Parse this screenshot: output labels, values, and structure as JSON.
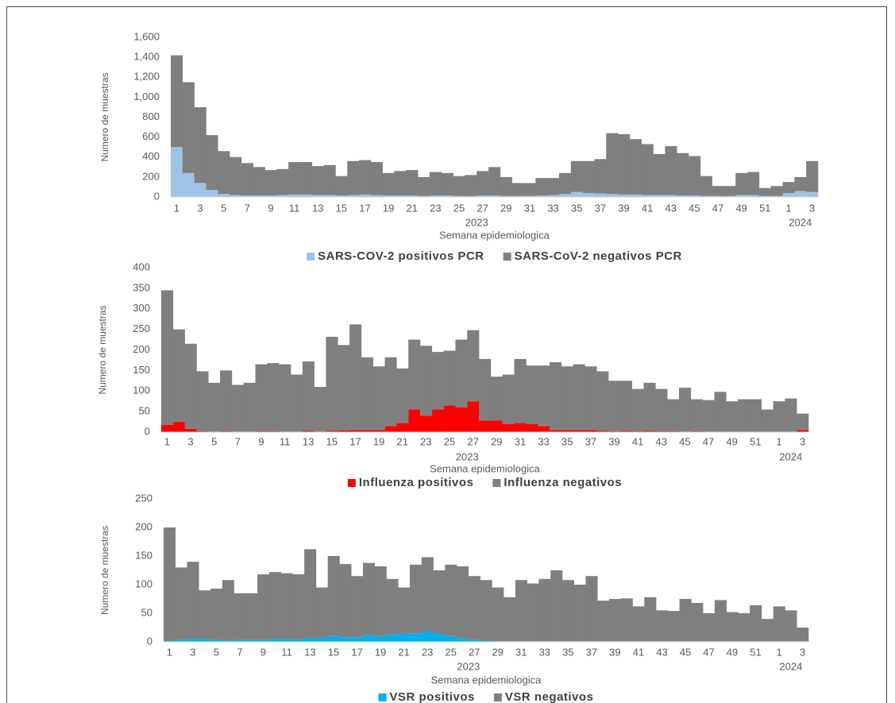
{
  "chart_data": [
    {
      "type": "bar",
      "stacked": true,
      "y_label": "Numero de muestras",
      "x_label": "Semana epidemiologica",
      "x_groups": [
        "2023",
        "2024"
      ],
      "categories": [
        "1",
        null,
        "3",
        null,
        "5",
        null,
        "7",
        null,
        "9",
        null,
        "11",
        null,
        "13",
        null,
        "15",
        null,
        "17",
        null,
        "19",
        null,
        "21",
        null,
        "23",
        null,
        "25",
        null,
        "27",
        null,
        "29",
        null,
        "31",
        null,
        "33",
        null,
        "35",
        null,
        "37",
        null,
        "39",
        null,
        "41",
        null,
        "43",
        null,
        "45",
        null,
        "47",
        null,
        "49",
        null,
        "51",
        null,
        "1",
        null,
        "3"
      ],
      "ylim": [
        0,
        1600
      ],
      "yticks": [
        0,
        200,
        400,
        600,
        800,
        {
          "value": 1000,
          "label": "1,000"
        },
        {
          "value": 1200,
          "label": "1,200"
        },
        {
          "value": 1400,
          "label": "1,400"
        },
        {
          "value": 1600,
          "label": "1,600"
        }
      ],
      "series": [
        {
          "name": "SARS-COV-2 positivos PCR",
          "color": "#9dc3e6",
          "values": [
            500,
            240,
            140,
            70,
            30,
            20,
            15,
            15,
            15,
            20,
            25,
            25,
            20,
            20,
            15,
            20,
            25,
            20,
            15,
            15,
            15,
            10,
            15,
            15,
            10,
            10,
            15,
            15,
            10,
            10,
            10,
            15,
            20,
            30,
            50,
            40,
            35,
            30,
            25,
            25,
            20,
            20,
            20,
            15,
            15,
            10,
            10,
            10,
            20,
            20,
            10,
            10,
            40,
            60,
            50
          ]
        },
        {
          "name": "SARS-CoV-2 negativos PCR",
          "color": "#7f7f7f",
          "values": [
            920,
            910,
            760,
            550,
            430,
            380,
            325,
            285,
            255,
            260,
            325,
            325,
            290,
            300,
            195,
            340,
            345,
            330,
            225,
            245,
            255,
            190,
            235,
            225,
            200,
            210,
            245,
            285,
            190,
            130,
            130,
            175,
            170,
            210,
            310,
            320,
            345,
            610,
            605,
            555,
            510,
            410,
            490,
            425,
            395,
            200,
            100,
            100,
            220,
            230,
            80,
            100,
            110,
            140,
            310
          ]
        }
      ]
    },
    {
      "type": "bar",
      "stacked": true,
      "y_label": "Numero de muestras",
      "x_label": "Semana epidemiologica",
      "x_groups": [
        "2023",
        "2024"
      ],
      "categories": [
        "1",
        null,
        "3",
        null,
        "5",
        null,
        "7",
        null,
        "9",
        null,
        "11",
        null,
        "13",
        null,
        "15",
        null,
        "17",
        null,
        "19",
        null,
        "21",
        null,
        "23",
        null,
        "25",
        null,
        "27",
        null,
        "29",
        null,
        "31",
        null,
        "33",
        null,
        "35",
        null,
        "37",
        null,
        "39",
        null,
        "41",
        null,
        "43",
        null,
        "45",
        null,
        "47",
        null,
        "49",
        null,
        "51",
        null,
        "1",
        null,
        "3"
      ],
      "ylim": [
        0,
        400
      ],
      "yticks": [
        0,
        50,
        100,
        150,
        200,
        250,
        300,
        350,
        400
      ],
      "series": [
        {
          "name": "Influenza positivos",
          "color": "#ff0000",
          "values": [
            18,
            25,
            8,
            2,
            1,
            2,
            1,
            1,
            2,
            2,
            1,
            1,
            3,
            1,
            3,
            4,
            5,
            5,
            5,
            15,
            22,
            55,
            40,
            55,
            65,
            60,
            75,
            28,
            28,
            20,
            22,
            20,
            15,
            5,
            5,
            5,
            5,
            3,
            2,
            3,
            2,
            3,
            2,
            2,
            1,
            2,
            1,
            1,
            1,
            1,
            1,
            1,
            1,
            1,
            5
          ]
        },
        {
          "name": "Influenza negativos",
          "color": "#7f7f7f",
          "values": [
            327,
            225,
            207,
            146,
            119,
            148,
            114,
            119,
            163,
            166,
            164,
            139,
            169,
            109,
            229,
            208,
            257,
            177,
            155,
            167,
            133,
            170,
            170,
            140,
            133,
            165,
            173,
            150,
            107,
            120,
            156,
            142,
            147,
            165,
            155,
            160,
            155,
            145,
            123,
            122,
            103,
            117,
            103,
            78,
            107,
            78,
            77,
            97,
            74,
            79,
            79,
            54,
            74,
            81,
            40
          ]
        }
      ]
    },
    {
      "type": "bar",
      "stacked": true,
      "y_label": "Numero de muestras",
      "x_label": "Semana epidemiologica",
      "x_groups": [
        "2023",
        "2024"
      ],
      "categories": [
        "1",
        null,
        "3",
        null,
        "5",
        null,
        "7",
        null,
        "9",
        null,
        "11",
        null,
        "13",
        null,
        "15",
        null,
        "17",
        null,
        "19",
        null,
        "21",
        null,
        "23",
        null,
        "25",
        null,
        "27",
        null,
        "29",
        null,
        "31",
        null,
        "33",
        null,
        "35",
        null,
        "37",
        null,
        "39",
        null,
        "41",
        null,
        "43",
        null,
        "45",
        null,
        "47",
        null,
        "49",
        null,
        "51",
        null,
        "1",
        null,
        "3"
      ],
      "ylim": [
        0,
        250
      ],
      "yticks": [
        0,
        50,
        100,
        150,
        200,
        250
      ],
      "series": [
        {
          "name": "VSR positivos",
          "color": "#00b0f0",
          "values": [
            2,
            3,
            5,
            5,
            3,
            2,
            3,
            3,
            3,
            5,
            5,
            4,
            7,
            7,
            10,
            8,
            8,
            12,
            10,
            13,
            14,
            15,
            18,
            14,
            10,
            6,
            3,
            2,
            1,
            1,
            1,
            1,
            1,
            1,
            1,
            1,
            1,
            1,
            1,
            1,
            1,
            1,
            1,
            1,
            1,
            1,
            1,
            1,
            1,
            1,
            1,
            1,
            1,
            1,
            1
          ]
        },
        {
          "name": "VSR negativos",
          "color": "#7f7f7f",
          "values": [
            198,
            127,
            135,
            85,
            90,
            106,
            82,
            82,
            115,
            117,
            115,
            114,
            155,
            88,
            140,
            128,
            107,
            126,
            122,
            97,
            81,
            120,
            130,
            111,
            125,
            126,
            112,
            106,
            94,
            77,
            107,
            101,
            109,
            124,
            107,
            99,
            114,
            71,
            74,
            75,
            61,
            77,
            54,
            53,
            74,
            67,
            49,
            72,
            51,
            49,
            63,
            39,
            61,
            54,
            24
          ]
        }
      ]
    }
  ]
}
